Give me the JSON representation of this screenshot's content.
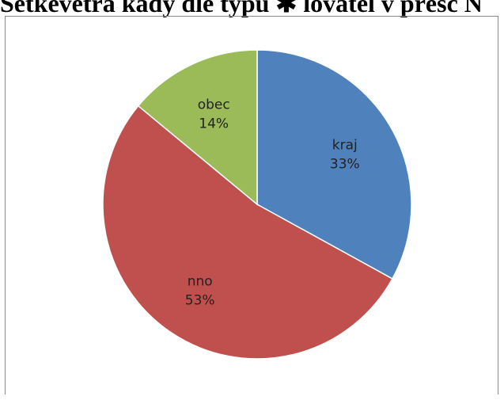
{
  "page": {
    "title": "Setkevetra kady dle typu ✱ lovatel v přesc N"
  },
  "chart_data": {
    "type": "pie",
    "start_angle_deg": 0,
    "direction": "clockwise",
    "legend": "none",
    "slices": [
      {
        "label": "kraj",
        "value": 33,
        "value_label": "33%",
        "color": "#4f81bd"
      },
      {
        "label": "nno",
        "value": 53,
        "value_label": "53%",
        "color": "#c0504d"
      },
      {
        "label": "obec",
        "value": 14,
        "value_label": "14%",
        "color": "#9bbb59"
      }
    ]
  }
}
